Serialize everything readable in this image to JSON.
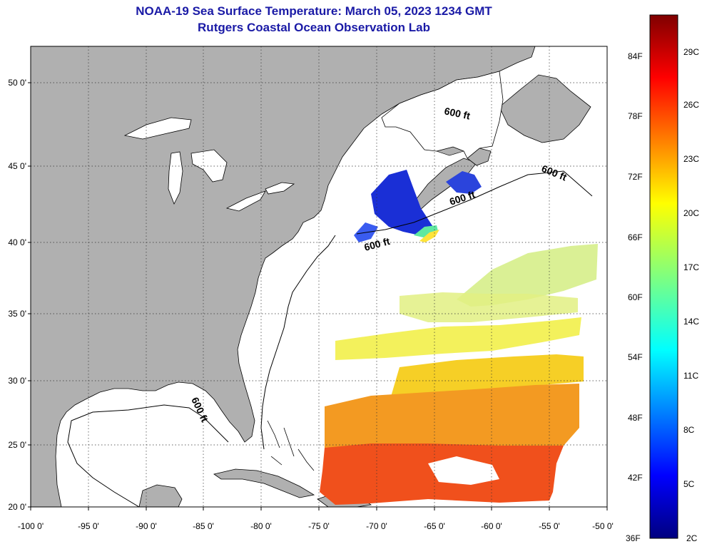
{
  "header": {
    "title": "NOAA-19 Sea Surface Temperature:  March 05, 2023 1234 GMT",
    "subtitle": "Rutgers Coastal Ocean Observation Lab"
  },
  "map": {
    "lon_range": [
      -100,
      -50
    ],
    "lat_range": [
      20,
      52.5
    ],
    "lat_labels": [
      {
        "lat": 50,
        "text": "50 0'"
      },
      {
        "lat": 45,
        "text": "45 0'"
      },
      {
        "lat": 40,
        "text": "40 0'"
      },
      {
        "lat": 35,
        "text": "35 0'"
      },
      {
        "lat": 30,
        "text": "30 0'"
      },
      {
        "lat": 25,
        "text": "25 0'"
      },
      {
        "lat": 20,
        "text": "20 0'"
      }
    ],
    "lon_labels": [
      {
        "lon": -100,
        "text": "-100 0'"
      },
      {
        "lon": -95,
        "text": "-95 0'"
      },
      {
        "lon": -90,
        "text": "-90 0'"
      },
      {
        "lon": -85,
        "text": "-85 0'"
      },
      {
        "lon": -80,
        "text": "-80 0'"
      },
      {
        "lon": -75,
        "text": "-75 0'"
      },
      {
        "lon": -70,
        "text": "-70 0'"
      },
      {
        "lon": -65,
        "text": "-65 0'"
      },
      {
        "lon": -60,
        "text": "-60 0'"
      },
      {
        "lon": -55,
        "text": "-55 0'"
      },
      {
        "lon": -50,
        "text": "-50 0'"
      }
    ],
    "contour_label": "600 ft",
    "colors": {
      "land": "#b0b0b0",
      "ocean": "#ffffff",
      "grid": "#333333"
    }
  },
  "colorbar": {
    "range_c": [
      2,
      31
    ],
    "fahrenheit": [
      "84F",
      "78F",
      "72F",
      "66F",
      "60F",
      "54F",
      "48F",
      "42F",
      "36F"
    ],
    "celsius": [
      "29C",
      "26C",
      "23C",
      "20C",
      "17C",
      "14C",
      "11C",
      "8C",
      "5C",
      "2C"
    ]
  }
}
